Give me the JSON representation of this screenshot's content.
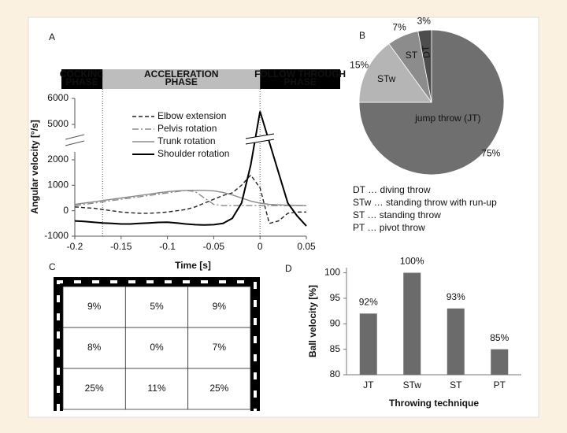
{
  "chart_data": [
    {
      "type": "line",
      "panel": "A",
      "x_label": "Time [s]",
      "y_label": "Angular velocity [°/s]",
      "phases": [
        [
          "COCKING",
          "PHASE"
        ],
        [
          "ACCELERATION",
          "PHASE"
        ],
        [
          "FOLLOW THROUGH",
          "PHASE"
        ]
      ],
      "phase_boundaries": [
        -0.17,
        0
      ],
      "xlim": [
        -0.2,
        0.05
      ],
      "xticks": [
        -0.2,
        -0.15,
        -0.1,
        -0.05,
        0,
        0.05
      ],
      "ylim": [
        -1000,
        6000
      ],
      "yticks": [
        -1000,
        0,
        1000,
        2000,
        5000,
        6000
      ],
      "axis_break": [
        2000,
        5000
      ],
      "x": [
        -0.2,
        -0.19,
        -0.18,
        -0.17,
        -0.16,
        -0.15,
        -0.14,
        -0.13,
        -0.12,
        -0.11,
        -0.1,
        -0.09,
        -0.08,
        -0.07,
        -0.06,
        -0.05,
        -0.04,
        -0.03,
        -0.02,
        -0.01,
        0,
        0.01,
        0.02,
        0.03,
        0.04,
        0.05
      ],
      "series": [
        {
          "name": "Elbow extension",
          "color": "#222222",
          "linestyle": "dashed",
          "values": [
            150,
            120,
            100,
            50,
            0,
            -50,
            -80,
            -100,
            -100,
            -80,
            -50,
            0,
            50,
            150,
            300,
            450,
            600,
            700,
            1000,
            1400,
            900,
            -500,
            -400,
            -100,
            -50,
            -50
          ]
        },
        {
          "name": "Pelvis rotation",
          "color": "#8a8a8a",
          "linestyle": "dashdot",
          "values": [
            200,
            250,
            300,
            350,
            400,
            450,
            500,
            550,
            600,
            650,
            700,
            750,
            800,
            750,
            500,
            250,
            200,
            200,
            200,
            200,
            200,
            200,
            200,
            200,
            200,
            200
          ]
        },
        {
          "name": "Trunk rotation",
          "color": "#8a8a8a",
          "linestyle": "solid",
          "values": [
            250,
            300,
            350,
            400,
            450,
            500,
            550,
            600,
            650,
            700,
            750,
            780,
            800,
            800,
            800,
            780,
            720,
            620,
            500,
            380,
            300,
            250,
            230,
            220,
            210,
            200
          ]
        },
        {
          "name": "Shoulder rotation",
          "color": "#000000",
          "linestyle": "solid",
          "values": [
            -400,
            -420,
            -450,
            -480,
            -500,
            -520,
            -520,
            -500,
            -480,
            -460,
            -450,
            -480,
            -520,
            -550,
            -560,
            -550,
            -500,
            -300,
            300,
            1800,
            5500,
            3500,
            1500,
            300,
            -200,
            -600
          ]
        }
      ]
    },
    {
      "type": "pie",
      "panel": "B",
      "categories": [
        "jump throw (JT)",
        "STw",
        "ST",
        "DT"
      ],
      "values": [
        75,
        15,
        7,
        3
      ],
      "value_labels": [
        "75%",
        "15%",
        "7%",
        "3%"
      ],
      "colors": [
        "#6f6f6f",
        "#b5b5b5",
        "#8c8c8c",
        "#4d4d4d"
      ],
      "notes": [
        "DT … diving throw",
        "STw … standing throw with run-up",
        "ST … standing throw",
        "PT … pivot throw"
      ]
    },
    {
      "type": "grid",
      "panel": "C",
      "values": [
        [
          9,
          5,
          9
        ],
        [
          8,
          0,
          7
        ],
        [
          25,
          11,
          25
        ]
      ],
      "value_labels": [
        [
          "9%",
          "5%",
          "9%"
        ],
        [
          "8%",
          "0%",
          "7%"
        ],
        [
          "25%",
          "11%",
          "25%"
        ]
      ]
    },
    {
      "type": "bar",
      "panel": "D",
      "x_label": "Throwing technique",
      "y_label": "Ball velocity [%]",
      "categories": [
        "JT",
        "STw",
        "ST",
        "PT"
      ],
      "values": [
        92,
        100,
        93,
        85
      ],
      "value_labels": [
        "92%",
        "100%",
        "93%",
        "85%"
      ],
      "color": "#6b6b6b",
      "ylim": [
        80,
        101
      ],
      "yticks": [
        80,
        85,
        90,
        95,
        100
      ]
    }
  ]
}
